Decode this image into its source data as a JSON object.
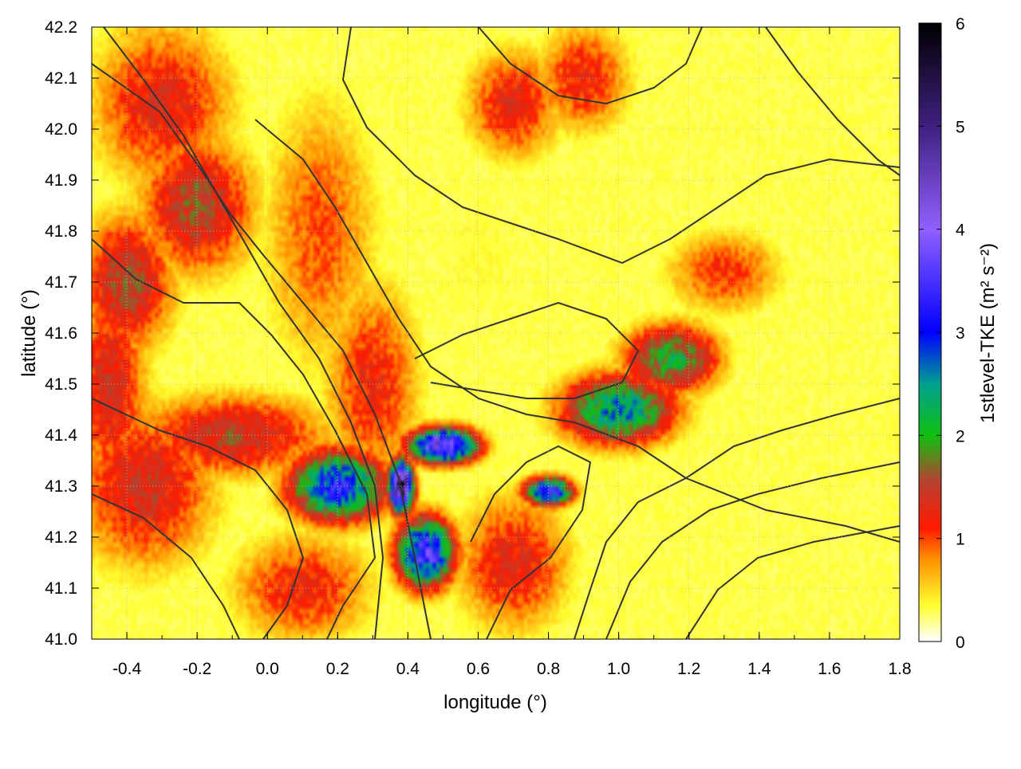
{
  "chart_data": {
    "type": "heatmap",
    "title": "",
    "xlabel": "longitude (°)",
    "ylabel": "latitude (°)",
    "colorbar_label": "1stlevel-TKE (m² s⁻²)",
    "xlim": [
      -0.5,
      1.8
    ],
    "ylim": [
      41.0,
      42.2
    ],
    "clim": [
      0,
      6
    ],
    "x_ticks": [
      "-0.4",
      "-0.2",
      "0.0",
      "0.2",
      "0.4",
      "0.6",
      "0.8",
      "1.0",
      "1.2",
      "1.4",
      "1.6",
      "1.8"
    ],
    "y_ticks": [
      "41.0",
      "41.1",
      "41.2",
      "41.3",
      "41.4",
      "41.5",
      "41.6",
      "41.7",
      "41.8",
      "41.9",
      "42.0",
      "42.1",
      "42.2"
    ],
    "colorbar_ticks": [
      "0",
      "1",
      "2",
      "3",
      "4",
      "5",
      "6"
    ],
    "grid": true,
    "colormap": [
      {
        "value": 0.0,
        "color": "#ffffff"
      },
      {
        "value": 0.35,
        "color": "#ffff30"
      },
      {
        "value": 0.8,
        "color": "#ff9000"
      },
      {
        "value": 1.1,
        "color": "#ff1a00"
      },
      {
        "value": 1.55,
        "color": "#b84030"
      },
      {
        "value": 2.0,
        "color": "#10c010"
      },
      {
        "value": 2.5,
        "color": "#00a090"
      },
      {
        "value": 3.0,
        "color": "#0000ff"
      },
      {
        "value": 4.0,
        "color": "#9060ff"
      },
      {
        "value": 5.0,
        "color": "#402080"
      },
      {
        "value": 6.0,
        "color": "#000000"
      }
    ],
    "features": [
      {
        "x": 0.5,
        "y": 41.38,
        "sx": 0.07,
        "sy": 0.025,
        "value": 4.2
      },
      {
        "x": 0.38,
        "y": 41.3,
        "sx": 0.025,
        "sy": 0.035,
        "value": 5.5
      },
      {
        "x": 0.45,
        "y": 41.17,
        "sx": 0.06,
        "sy": 0.05,
        "value": 3.6
      },
      {
        "x": 0.2,
        "y": 41.3,
        "sx": 0.1,
        "sy": 0.05,
        "value": 3.2
      },
      {
        "x": 0.8,
        "y": 41.29,
        "sx": 0.05,
        "sy": 0.02,
        "value": 3.5
      },
      {
        "x": 1.0,
        "y": 41.45,
        "sx": 0.12,
        "sy": 0.05,
        "value": 2.6
      },
      {
        "x": 1.15,
        "y": 41.55,
        "sx": 0.1,
        "sy": 0.05,
        "value": 2.1
      },
      {
        "x": -0.1,
        "y": 41.4,
        "sx": 0.2,
        "sy": 0.06,
        "value": 1.5
      },
      {
        "x": -0.35,
        "y": 41.3,
        "sx": 0.15,
        "sy": 0.12,
        "value": 1.4
      },
      {
        "x": -0.4,
        "y": 41.7,
        "sx": 0.1,
        "sy": 0.1,
        "value": 1.6
      },
      {
        "x": -0.2,
        "y": 41.85,
        "sx": 0.12,
        "sy": 0.1,
        "value": 1.6
      },
      {
        "x": -0.3,
        "y": 42.05,
        "sx": 0.15,
        "sy": 0.12,
        "value": 1.3
      },
      {
        "x": -0.45,
        "y": 41.5,
        "sx": 0.08,
        "sy": 0.15,
        "value": 1.4
      },
      {
        "x": 0.3,
        "y": 41.5,
        "sx": 0.1,
        "sy": 0.15,
        "value": 1.2
      },
      {
        "x": 0.15,
        "y": 41.8,
        "sx": 0.12,
        "sy": 0.2,
        "value": 1.0
      },
      {
        "x": 0.7,
        "y": 41.15,
        "sx": 0.12,
        "sy": 0.1,
        "value": 1.3
      },
      {
        "x": 1.3,
        "y": 41.72,
        "sx": 0.12,
        "sy": 0.06,
        "value": 1.1
      },
      {
        "x": 0.7,
        "y": 42.05,
        "sx": 0.1,
        "sy": 0.08,
        "value": 1.3
      },
      {
        "x": 0.9,
        "y": 42.1,
        "sx": 0.1,
        "sy": 0.08,
        "value": 1.2
      },
      {
        "x": 0.1,
        "y": 41.1,
        "sx": 0.15,
        "sy": 0.08,
        "value": 1.2
      },
      {
        "x": 0.6,
        "y": 41.75,
        "sx": 0.2,
        "sy": 0.2,
        "value": 0.35
      },
      {
        "x": 1.45,
        "y": 41.35,
        "sx": 0.25,
        "sy": 0.25,
        "value": 0.3
      },
      {
        "x": 1.6,
        "y": 41.1,
        "sx": 0.2,
        "sy": 0.1,
        "value": 0.15
      }
    ]
  }
}
